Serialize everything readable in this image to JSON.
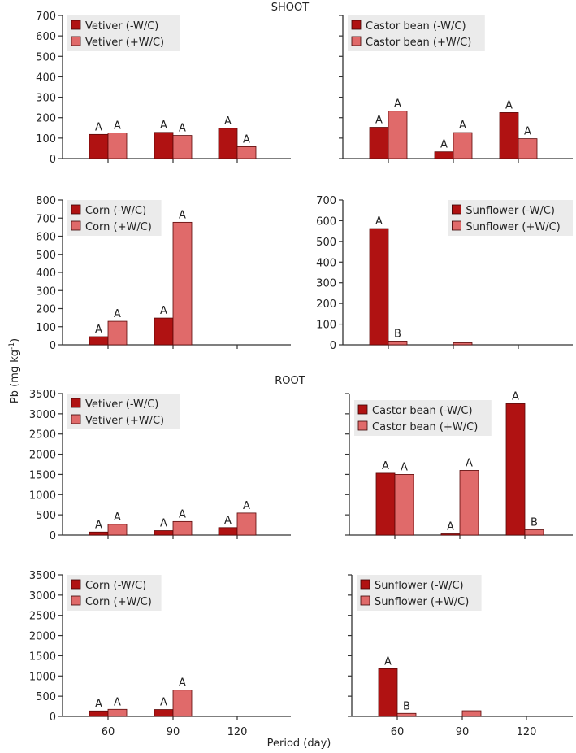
{
  "figure": {
    "section_titles": [
      "SHOOT",
      "ROOT"
    ],
    "ylabel": "Pb (mg kg",
    "ylabel_sup": "-1",
    "ylabel_close": ")",
    "xlabel": "Period (day)"
  },
  "colors": {
    "without_wc": "#b01212",
    "with_wc": "#e06a6a",
    "legend_bg": "#ebebeb",
    "axis": "#333333"
  },
  "chart_data": [
    {
      "type": "bar",
      "section": "SHOOT",
      "plant": "Vetiver",
      "categories": [
        "60",
        "90",
        "120"
      ],
      "series": [
        {
          "name": "Vetiver (-W/C)",
          "values": [
            118,
            128,
            148
          ],
          "labels": [
            "A",
            "A",
            "A"
          ]
        },
        {
          "name": "Vetiver (+W/C)",
          "values": [
            125,
            113,
            58
          ],
          "labels": [
            "A",
            "A",
            "A"
          ]
        }
      ],
      "ylim": [
        0,
        700
      ],
      "yticks": [
        0,
        100,
        200,
        300,
        400,
        500,
        600,
        700
      ],
      "show_ytick_labels": true,
      "show_xtick_labels": false,
      "legend": "top-left"
    },
    {
      "type": "bar",
      "section": "SHOOT",
      "plant": "Castor bean",
      "categories": [
        "60",
        "90",
        "120"
      ],
      "series": [
        {
          "name": "Castor bean (-W/C)",
          "values": [
            153,
            33,
            225
          ],
          "labels": [
            "A",
            "A",
            "A"
          ]
        },
        {
          "name": "Castor bean (+W/C)",
          "values": [
            232,
            127,
            97
          ],
          "labels": [
            "A",
            "A",
            "A"
          ]
        }
      ],
      "ylim": [
        0,
        700
      ],
      "yticks": [
        0,
        100,
        200,
        300,
        400,
        500,
        600,
        700
      ],
      "show_ytick_labels": false,
      "show_xtick_labels": false,
      "legend": "top-left"
    },
    {
      "type": "bar",
      "section": "SHOOT",
      "plant": "Corn",
      "categories": [
        "60",
        "90",
        "120"
      ],
      "series": [
        {
          "name": "Corn (-W/C)",
          "values": [
            45,
            148,
            0
          ],
          "labels": [
            "A",
            "A",
            ""
          ]
        },
        {
          "name": "Corn (+W/C)",
          "values": [
            130,
            677,
            0
          ],
          "labels": [
            "A",
            "A",
            ""
          ]
        }
      ],
      "ylim": [
        0,
        800
      ],
      "yticks": [
        0,
        100,
        200,
        300,
        400,
        500,
        600,
        700,
        800
      ],
      "show_ytick_labels": true,
      "show_xtick_labels": false,
      "legend": "top-left"
    },
    {
      "type": "bar",
      "section": "SHOOT",
      "plant": "Sunflower",
      "categories": [
        "60",
        "90",
        "120"
      ],
      "series": [
        {
          "name": "Sunflower (-W/C)",
          "values": [
            562,
            0,
            0
          ],
          "labels": [
            "A",
            "",
            ""
          ]
        },
        {
          "name": "Sunflower (+W/C)",
          "values": [
            18,
            10,
            0
          ],
          "labels": [
            "B",
            "",
            ""
          ]
        }
      ],
      "ylim": [
        0,
        700
      ],
      "yticks": [
        0,
        100,
        200,
        300,
        400,
        500,
        600,
        700
      ],
      "show_ytick_labels": true,
      "show_xtick_labels": false,
      "legend": "top-right"
    },
    {
      "type": "bar",
      "section": "ROOT",
      "plant": "Vetiver",
      "categories": [
        "60",
        "90",
        "120"
      ],
      "series": [
        {
          "name": "Vetiver (-W/C)",
          "values": [
            75,
            110,
            185
          ],
          "labels": [
            "A",
            "A",
            "A"
          ]
        },
        {
          "name": "Vetiver (+W/C)",
          "values": [
            265,
            335,
            545
          ],
          "labels": [
            "A",
            "A",
            "A"
          ]
        }
      ],
      "ylim": [
        0,
        3500
      ],
      "yticks": [
        0,
        500,
        1000,
        1500,
        2000,
        2500,
        3000,
        3500
      ],
      "show_ytick_labels": true,
      "show_xtick_labels": false,
      "legend": "top-left"
    },
    {
      "type": "bar",
      "section": "ROOT",
      "plant": "Castor bean",
      "categories": [
        "60",
        "90",
        "120"
      ],
      "series": [
        {
          "name": "Castor bean (-W/C)",
          "values": [
            1530,
            30,
            3250
          ],
          "labels": [
            "A",
            "A",
            "A"
          ]
        },
        {
          "name": "Castor bean (+W/C)",
          "values": [
            1500,
            1600,
            130
          ],
          "labels": [
            "A",
            "A",
            "B"
          ]
        }
      ],
      "ylim": [
        0,
        3500
      ],
      "yticks": [
        0,
        500,
        1000,
        1500,
        2000,
        2500,
        3000,
        3500
      ],
      "show_ytick_labels": false,
      "show_xtick_labels": false,
      "legend": "top-left"
    },
    {
      "type": "bar",
      "section": "ROOT",
      "plant": "Corn",
      "categories": [
        "60",
        "90",
        "120"
      ],
      "series": [
        {
          "name": "Corn (-W/C)",
          "values": [
            135,
            170,
            0
          ],
          "labels": [
            "A",
            "A",
            ""
          ]
        },
        {
          "name": "Corn (+W/C)",
          "values": [
            175,
            650,
            0
          ],
          "labels": [
            "A",
            "A",
            ""
          ]
        }
      ],
      "ylim": [
        0,
        3500
      ],
      "yticks": [
        0,
        500,
        1000,
        1500,
        2000,
        2500,
        3000,
        3500
      ],
      "show_ytick_labels": true,
      "show_xtick_labels": true,
      "legend": "top-left"
    },
    {
      "type": "bar",
      "section": "ROOT",
      "plant": "Sunflower",
      "categories": [
        "60",
        "90",
        "120"
      ],
      "series": [
        {
          "name": "Sunflower (-W/C)",
          "values": [
            1180,
            0,
            0
          ],
          "labels": [
            "A",
            "",
            ""
          ]
        },
        {
          "name": "Sunflower (+W/C)",
          "values": [
            75,
            140,
            0
          ],
          "labels": [
            "B",
            "",
            ""
          ]
        }
      ],
      "ylim": [
        0,
        3500
      ],
      "yticks": [
        0,
        500,
        1000,
        1500,
        2000,
        2500,
        3000,
        3500
      ],
      "show_ytick_labels": false,
      "show_xtick_labels": true,
      "legend": "top-left"
    }
  ]
}
